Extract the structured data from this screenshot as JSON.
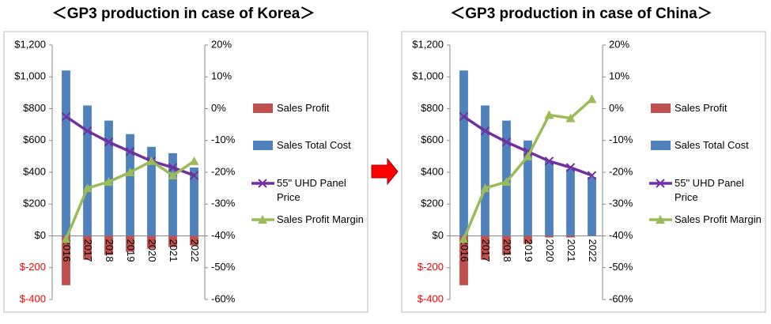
{
  "chart_data": [
    {
      "type": "bar",
      "title": "＜GP3 production in case of Korea＞",
      "categories": [
        "2016",
        "2017",
        "2018",
        "2019",
        "2020",
        "2021",
        "2022"
      ],
      "series": [
        {
          "name": "Sales Profit",
          "color": "#c0504d",
          "type": "bar",
          "values": [
            -310,
            -150,
            -120,
            -100,
            -80,
            -70,
            -60
          ]
        },
        {
          "name": "Sales Total Cost",
          "color": "#4f81bd",
          "type": "bar",
          "values": [
            1040,
            820,
            725,
            640,
            560,
            520,
            430
          ]
        },
        {
          "name": "55\" UHD Panel Price",
          "color": "#7030a0",
          "type": "line",
          "values": [
            750,
            660,
            590,
            530,
            470,
            430,
            380
          ]
        },
        {
          "name": "Sales Profit Margin",
          "color": "#9bbb59",
          "type": "line",
          "axis": "y2",
          "values": [
            -41,
            -25,
            -23,
            -20,
            -16.5,
            -21,
            -16.5
          ]
        }
      ],
      "ylim": [
        -400,
        1200
      ],
      "yticks": [
        {
          "value": 1200,
          "label": "$1,200"
        },
        {
          "value": 1000,
          "label": "$1,000"
        },
        {
          "value": 800,
          "label": "$800"
        },
        {
          "value": 600,
          "label": "$600"
        },
        {
          "value": 400,
          "label": "$400"
        },
        {
          "value": 200,
          "label": "$200"
        },
        {
          "value": 0,
          "label": "$0"
        },
        {
          "value": -200,
          "label": "$-200"
        },
        {
          "value": -400,
          "label": "$-400"
        }
      ],
      "y2lim": [
        -60,
        20
      ],
      "y2ticks": [
        {
          "value": 20,
          "label": "20%"
        },
        {
          "value": 10,
          "label": "10%"
        },
        {
          "value": 0,
          "label": "0%"
        },
        {
          "value": -10,
          "label": "-10%"
        },
        {
          "value": -20,
          "label": "-20%"
        },
        {
          "value": -30,
          "label": "-30%"
        },
        {
          "value": -40,
          "label": "-40%"
        },
        {
          "value": -50,
          "label": "-50%"
        },
        {
          "value": -60,
          "label": "-60%"
        }
      ],
      "negative_tick_color": "#ff0000",
      "legend": "right"
    },
    {
      "type": "bar",
      "title": "＜GP3 production in case of  China＞",
      "categories": [
        "2016",
        "2017",
        "2018",
        "2019",
        "2020",
        "2021",
        "2022"
      ],
      "series": [
        {
          "name": "Sales Profit",
          "color": "#c0504d",
          "type": "bar",
          "values": [
            -310,
            -150,
            -120,
            -50,
            -10,
            -10,
            0
          ]
        },
        {
          "name": "Sales Total Cost",
          "color": "#4f81bd",
          "type": "bar",
          "values": [
            1040,
            820,
            725,
            600,
            470,
            420,
            370
          ]
        },
        {
          "name": "55\" UHD Panel Price",
          "color": "#7030a0",
          "type": "line",
          "values": [
            750,
            660,
            590,
            530,
            470,
            430,
            380
          ]
        },
        {
          "name": "Sales Profit Margin",
          "color": "#9bbb59",
          "type": "line",
          "axis": "y2",
          "values": [
            -41,
            -25,
            -23,
            -15,
            -2,
            -3,
            3
          ]
        }
      ],
      "ylim": [
        -400,
        1200
      ],
      "yticks": [
        {
          "value": 1200,
          "label": "$1,200"
        },
        {
          "value": 1000,
          "label": "$1,000"
        },
        {
          "value": 800,
          "label": "$800"
        },
        {
          "value": 600,
          "label": "$600"
        },
        {
          "value": 400,
          "label": "$400"
        },
        {
          "value": 200,
          "label": "$200"
        },
        {
          "value": 0,
          "label": "$0"
        },
        {
          "value": -200,
          "label": "$-200"
        },
        {
          "value": -400,
          "label": "$-400"
        }
      ],
      "y2lim": [
        -60,
        20
      ],
      "y2ticks": [
        {
          "value": 20,
          "label": "20%"
        },
        {
          "value": 10,
          "label": "10%"
        },
        {
          "value": 0,
          "label": "0%"
        },
        {
          "value": -10,
          "label": "-10%"
        },
        {
          "value": -20,
          "label": "-20%"
        },
        {
          "value": -30,
          "label": "-30%"
        },
        {
          "value": -40,
          "label": "-40%"
        },
        {
          "value": -50,
          "label": "-50%"
        },
        {
          "value": -60,
          "label": "-60%"
        }
      ],
      "negative_tick_color": "#ff0000",
      "legend": "right"
    }
  ]
}
